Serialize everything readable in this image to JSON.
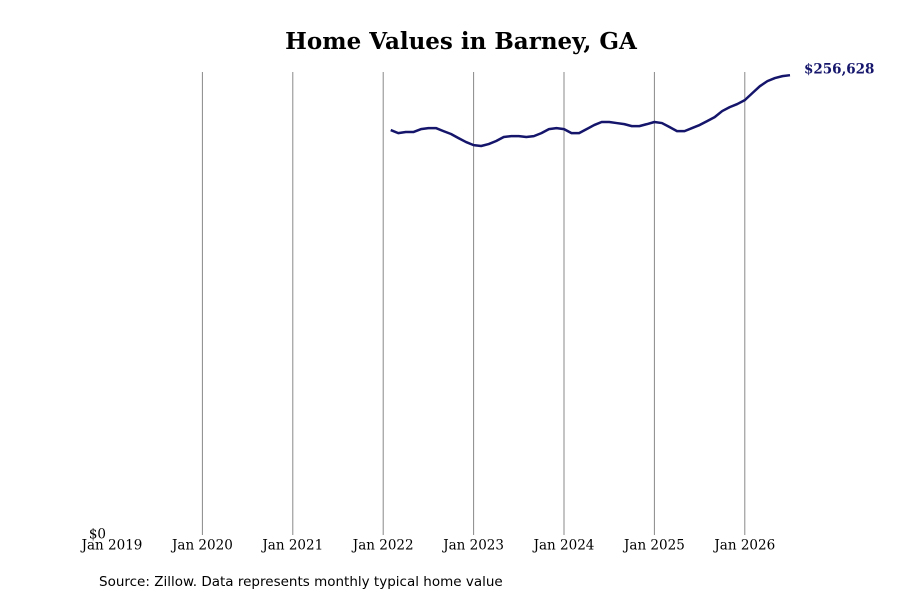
{
  "chart_data": {
    "type": "line",
    "title": "Home Values in Barney, GA",
    "source": "Source: Zillow. Data represents monthly typical home value",
    "x": [
      "2022-02",
      "2022-03",
      "2022-04",
      "2022-05",
      "2022-06",
      "2022-07",
      "2022-08",
      "2022-09",
      "2022-10",
      "2022-11",
      "2022-12",
      "2023-01",
      "2023-02",
      "2023-03",
      "2023-04",
      "2023-05",
      "2023-06",
      "2023-07",
      "2023-08",
      "2023-09",
      "2023-10",
      "2023-11",
      "2023-12",
      "2024-01",
      "2024-02",
      "2024-03",
      "2024-04",
      "2024-05",
      "2024-06",
      "2024-07",
      "2024-08",
      "2024-09",
      "2024-10",
      "2024-11",
      "2024-12",
      "2025-01",
      "2025-02",
      "2025-03",
      "2025-04",
      "2025-05",
      "2025-06",
      "2025-07",
      "2025-08",
      "2025-09",
      "2025-10",
      "2025-11",
      "2025-12",
      "2026-01",
      "2026-02",
      "2026-03",
      "2026-04",
      "2026-05",
      "2026-06",
      "2026-07"
    ],
    "series": [
      {
        "name": "Home value",
        "color": "#14156b",
        "values": [
          226000,
          224300,
          224900,
          224900,
          226500,
          227100,
          227100,
          225400,
          223800,
          221500,
          219300,
          217600,
          217100,
          218200,
          219900,
          222100,
          222600,
          222600,
          222100,
          222600,
          224300,
          226500,
          227100,
          226500,
          224300,
          224300,
          226500,
          228800,
          230500,
          230500,
          229900,
          229300,
          228200,
          228200,
          229300,
          230500,
          229900,
          227700,
          225400,
          225400,
          227100,
          228800,
          231000,
          233200,
          236600,
          238800,
          240500,
          242700,
          246600,
          250500,
          253300,
          255000,
          256100,
          256628
        ],
        "value_labels": [
          null,
          null,
          null,
          null,
          null,
          null,
          null,
          null,
          null,
          null,
          null,
          null,
          null,
          null,
          null,
          null,
          null,
          null,
          null,
          null,
          null,
          null,
          null,
          null,
          null,
          null,
          null,
          null,
          null,
          null,
          null,
          null,
          null,
          null,
          null,
          null,
          null,
          null,
          null,
          null,
          null,
          null,
          null,
          null,
          null,
          null,
          null,
          null,
          null,
          null,
          null,
          null,
          null,
          "$256,628"
        ]
      }
    ],
    "xlim": [
      "2019-01",
      "2026-07"
    ],
    "xticks": [
      {
        "value": "2019-01",
        "label": "Jan 2019"
      },
      {
        "value": "2020-01",
        "label": "Jan 2020"
      },
      {
        "value": "2021-01",
        "label": "Jan 2021"
      },
      {
        "value": "2022-01",
        "label": "Jan 2022"
      },
      {
        "value": "2023-01",
        "label": "Jan 2023"
      },
      {
        "value": "2024-01",
        "label": "Jan 2024"
      },
      {
        "value": "2025-01",
        "label": "Jan 2025"
      },
      {
        "value": "2026-01",
        "label": "Jan 2026"
      }
    ],
    "ylim": [
      0,
      258400
    ],
    "yticks": [
      {
        "value": 0,
        "label": "$0"
      }
    ],
    "grid": true
  }
}
